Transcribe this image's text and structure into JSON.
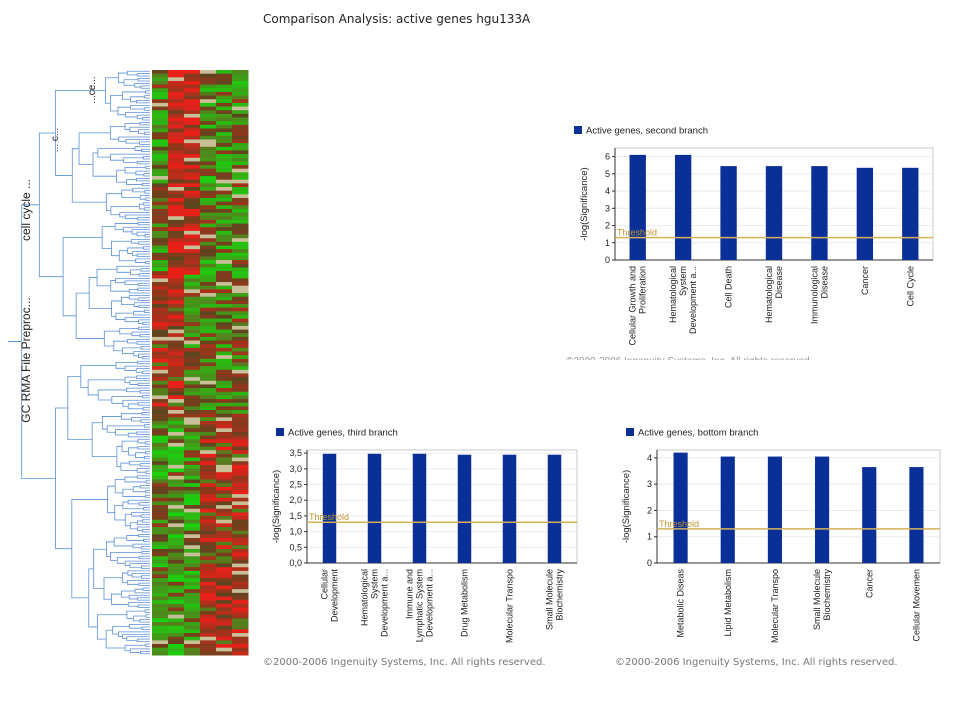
{
  "page": {
    "title": "Comparison Analysis: active genes hgu133A"
  },
  "dendrogram": {
    "labels": [
      "GC RMA File Preproc...",
      "cell cycle ...",
      "... c...",
      "...ce..."
    ]
  },
  "colors": {
    "bar": "#0a2f96",
    "threshold": "#d4b15a",
    "axis": "#333333",
    "dendro_line": "#5b8fd8",
    "heat_red": "#e8201a",
    "heat_green": "#18d40f"
  },
  "copyright": "©2000-2006 Ingenuity Systems, Inc. All rights reserved.",
  "chart_data": [
    {
      "type": "bar",
      "title": "Active genes, second branch",
      "legend": "Active genes, second branch",
      "ylabel": "-log(Significance)",
      "threshold_label": "Threshold",
      "threshold": 1.3,
      "ylim": [
        0,
        6.5
      ],
      "yticks": [
        "0",
        "1",
        "2",
        "3",
        "4",
        "5",
        "6"
      ],
      "categories": [
        [
          "Cellular Growth and",
          "Proliferation"
        ],
        [
          "Hematological",
          "System",
          "Development a..."
        ],
        [
          "Cell Death"
        ],
        [
          "Hematological",
          "Disease"
        ],
        [
          "Immunological",
          "Disease"
        ],
        [
          "Cancer"
        ],
        [
          "Cell Cycle"
        ]
      ],
      "values": [
        6.1,
        6.1,
        5.45,
        5.45,
        5.45,
        5.35,
        5.35
      ]
    },
    {
      "type": "bar",
      "title": "Active genes, third branch",
      "legend": "Active genes, third branch",
      "ylabel": "-log(Significance)",
      "threshold_label": "Threshold",
      "threshold": 1.3,
      "ylim": [
        0,
        3.6
      ],
      "yticks": [
        "0,0",
        "0,5",
        "1,0",
        "1,5",
        "2,0",
        "2,5",
        "3,0",
        "3,5"
      ],
      "categories": [
        [
          "Cellular",
          "Development"
        ],
        [
          "Hematological",
          "System",
          "Development a..."
        ],
        [
          "Immune and",
          "Lymphatic System",
          "Development a..."
        ],
        [
          "Drug Metabolism"
        ],
        [
          "Molecular Transpo"
        ],
        [
          "Small Molecule",
          "Biochemistry"
        ]
      ],
      "values": [
        3.48,
        3.48,
        3.48,
        3.45,
        3.45,
        3.45
      ]
    },
    {
      "type": "bar",
      "title": "Active genes, bottom branch",
      "legend": "Active genes, bottom branch",
      "ylabel": "-log(Significance)",
      "threshold_label": "Threshold",
      "threshold": 1.3,
      "ylim": [
        0,
        4.3
      ],
      "yticks": [
        "0",
        "1",
        "2",
        "3",
        "4"
      ],
      "categories": [
        [
          "Metabolic Diseas"
        ],
        [
          "Lipid Metabolism"
        ],
        [
          "Molecular Transpo"
        ],
        [
          "Small Molecule",
          "Biochemistry"
        ],
        [
          "Cancer"
        ],
        [
          "Cellular Movemen"
        ]
      ],
      "values": [
        4.2,
        4.05,
        4.05,
        4.05,
        3.65,
        3.65
      ]
    }
  ]
}
